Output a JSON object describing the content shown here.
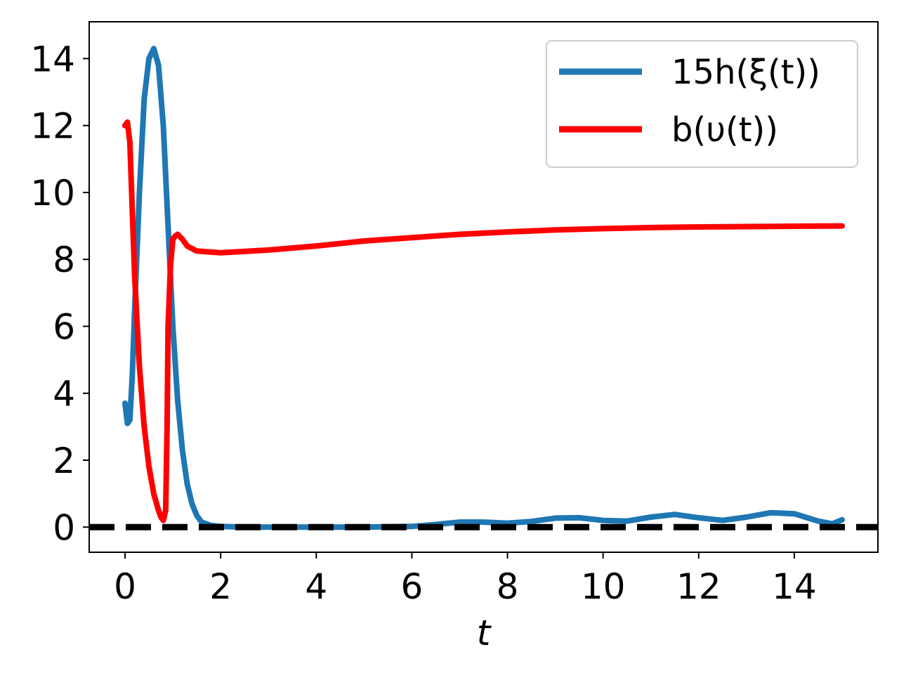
{
  "chart_data": {
    "type": "line",
    "title": "",
    "xlabel": "t",
    "ylabel": "",
    "xlim": [
      -0.75,
      15.75
    ],
    "ylim": [
      -0.75,
      15.1
    ],
    "xticks": [
      0,
      2,
      4,
      6,
      8,
      10,
      12,
      14
    ],
    "yticks": [
      0,
      2,
      4,
      6,
      8,
      10,
      12,
      14
    ],
    "grid": false,
    "legend_position": "top-right",
    "series": [
      {
        "name": "15h(ξ(t))",
        "color": "#1f77b4",
        "style": "solid",
        "x": [
          0,
          0.05,
          0.1,
          0.15,
          0.2,
          0.3,
          0.4,
          0.5,
          0.6,
          0.7,
          0.8,
          0.9,
          1.0,
          1.1,
          1.2,
          1.3,
          1.4,
          1.5,
          1.6,
          1.8,
          2.0,
          2.5,
          3.0,
          4.0,
          5.0,
          6.0,
          6.5,
          7.0,
          7.5,
          8.0,
          8.5,
          9.0,
          9.5,
          10.0,
          10.5,
          11.0,
          11.5,
          12.0,
          12.5,
          13.0,
          13.5,
          14.0,
          14.5,
          14.8,
          15.0
        ],
        "y": [
          3.7,
          3.1,
          3.2,
          4.5,
          6.5,
          10.0,
          12.8,
          14.0,
          14.3,
          13.8,
          12.0,
          9.0,
          6.0,
          3.8,
          2.3,
          1.3,
          0.7,
          0.35,
          0.15,
          0.05,
          0.02,
          0.0,
          0.0,
          0.0,
          0.0,
          0.02,
          0.08,
          0.15,
          0.15,
          0.12,
          0.17,
          0.27,
          0.28,
          0.2,
          0.18,
          0.3,
          0.38,
          0.28,
          0.2,
          0.3,
          0.43,
          0.4,
          0.18,
          0.1,
          0.22
        ]
      },
      {
        "name": "b(υ(t))",
        "color": "#ff0000",
        "style": "solid",
        "x": [
          0,
          0.05,
          0.1,
          0.15,
          0.2,
          0.3,
          0.4,
          0.5,
          0.6,
          0.7,
          0.75,
          0.8,
          0.85,
          0.88,
          0.9,
          0.95,
          1.0,
          1.05,
          1.1,
          1.2,
          1.3,
          1.5,
          2.0,
          3.0,
          4.0,
          5.0,
          6.0,
          7.0,
          8.0,
          9.0,
          10.0,
          11.0,
          12.0,
          13.0,
          14.0,
          15.0
        ],
        "y": [
          12.0,
          12.1,
          11.5,
          9.5,
          7.5,
          4.8,
          3.0,
          1.8,
          1.0,
          0.5,
          0.3,
          0.2,
          0.5,
          3.0,
          6.0,
          7.8,
          8.6,
          8.7,
          8.75,
          8.6,
          8.4,
          8.25,
          8.2,
          8.28,
          8.4,
          8.55,
          8.65,
          8.75,
          8.82,
          8.88,
          8.92,
          8.95,
          8.97,
          8.98,
          8.99,
          9.0
        ]
      },
      {
        "name": "",
        "color": "#000000",
        "style": "dashed",
        "x": [
          -0.75,
          15.75
        ],
        "y": [
          0,
          0
        ]
      }
    ]
  }
}
